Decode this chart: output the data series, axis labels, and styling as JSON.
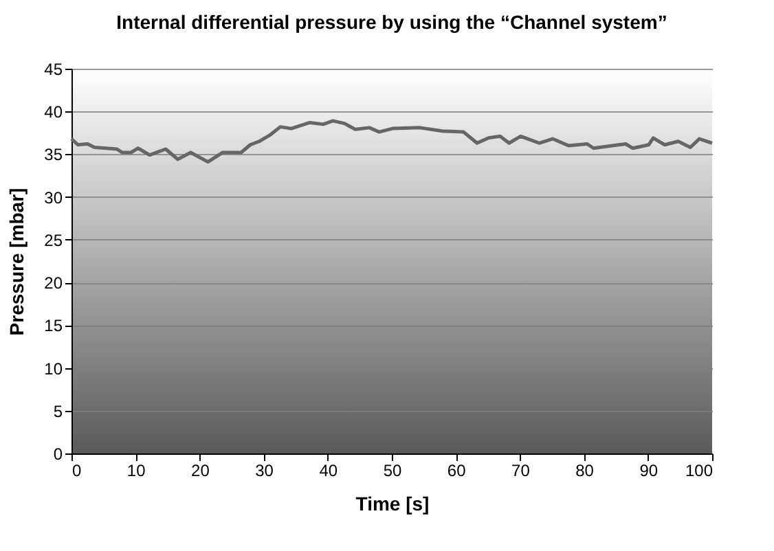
{
  "chart_data": {
    "type": "line",
    "title": "Internal differential pressure by using the “Channel system”",
    "xlabel": "Time [s]",
    "ylabel": "Pressure [mbar]",
    "x": [
      0,
      1,
      2.5,
      3.6,
      7.1,
      7.9,
      9.3,
      10.4,
      12.2,
      14.7,
      16.6,
      18.6,
      21.3,
      23.6,
      26.5,
      27.9,
      29.3,
      31.1,
      32.6,
      34.3,
      37.2,
      39.3,
      40.8,
      42.6,
      44.3,
      46.5,
      48,
      50.1,
      54.4,
      57.9,
      61.2,
      63.3,
      65.1,
      66.9,
      68.3,
      70.1,
      73,
      75.1,
      77.6,
      80.5,
      81.5,
      84.4,
      86.5,
      87.6,
      90.1,
      90.8,
      92.6,
      94.7,
      96.6,
      98,
      100
    ],
    "series": [
      {
        "color": "#666666",
        "values": [
          36.8,
          36.1,
          36.2,
          35.8,
          35.6,
          35.2,
          35.2,
          35.7,
          34.9,
          35.6,
          34.4,
          35.2,
          34.1,
          35.2,
          35.2,
          36.1,
          36.5,
          37.3,
          38.2,
          38.0,
          38.7,
          38.5,
          38.9,
          38.6,
          37.9,
          38.1,
          37.6,
          38.0,
          38.1,
          37.7,
          37.6,
          36.3,
          36.9,
          37.1,
          36.3,
          37.1,
          36.3,
          36.8,
          36.0,
          36.2,
          35.7,
          36.0,
          36.2,
          35.7,
          36.1,
          36.9,
          36.1,
          36.5,
          35.8,
          36.8,
          36.3
        ]
      }
    ],
    "xlim": [
      0,
      100
    ],
    "xticks": [
      0,
      10,
      20,
      30,
      40,
      50,
      60,
      70,
      80,
      90,
      100
    ],
    "ylim": [
      0,
      45
    ],
    "yticks": [
      0,
      5,
      10,
      15,
      20,
      25,
      30,
      35,
      40,
      45
    ],
    "grid": "y",
    "marker": "none",
    "line_style": "solid"
  }
}
